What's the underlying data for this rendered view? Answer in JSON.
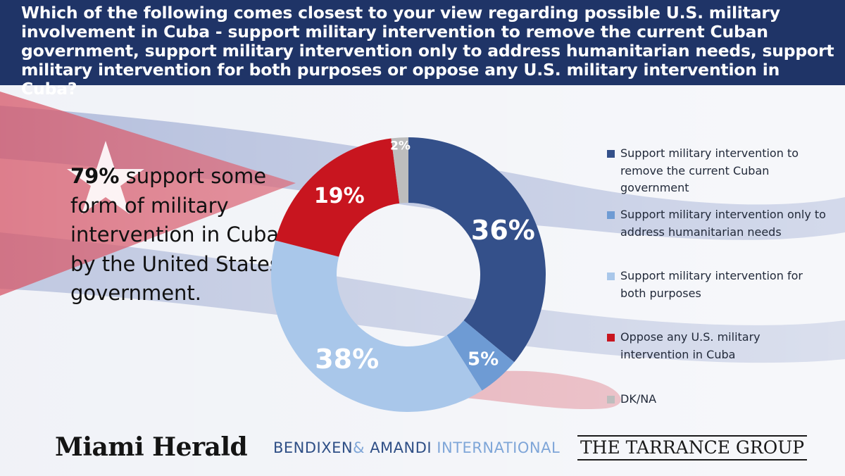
{
  "header": {
    "question": "Which of the following comes closest to your view regarding possible U.S. military involvement in Cuba - support military intervention to remove the current Cuban government, support military intervention only to address humanitarian needs, support military intervention for both purposes or oppose any U.S. military intervention in Cuba?"
  },
  "callout": {
    "percent": "79%",
    "text": " support some form of military intervention in Cuba by the United States government."
  },
  "chart_data": {
    "type": "pie",
    "variant": "donut",
    "categories": [
      "Support military intervention to remove the current Cuban government",
      "Support military intervention only to address humanitarian needs",
      "Support military intervention for both purposes",
      "Oppose any U.S. military intervention in Cuba",
      "DK/NA"
    ],
    "values": [
      36,
      5,
      38,
      19,
      2
    ],
    "labels": [
      "36%",
      "5%",
      "38%",
      "19%",
      "2%"
    ],
    "colors": [
      "#34508a",
      "#6e9bd4",
      "#a9c7ea",
      "#c8151f",
      "#bdbdbd"
    ],
    "label_colors": [
      "#ffffff",
      "#ffffff",
      "#ffffff",
      "#ffffff",
      "#111111"
    ],
    "legend_position": "right"
  },
  "logos": {
    "miami_herald": "Miami Herald",
    "bendixen": "BENDIXEN",
    "amp": "&",
    "amandi": " AMANDI",
    "international": " INTERNATIONAL",
    "tarrance": "THE TARRANCE GROUP"
  },
  "background": {
    "flag_colors": {
      "blue": "#5f75b5",
      "red": "#d24f5e",
      "white": "#f3f4f8"
    }
  }
}
